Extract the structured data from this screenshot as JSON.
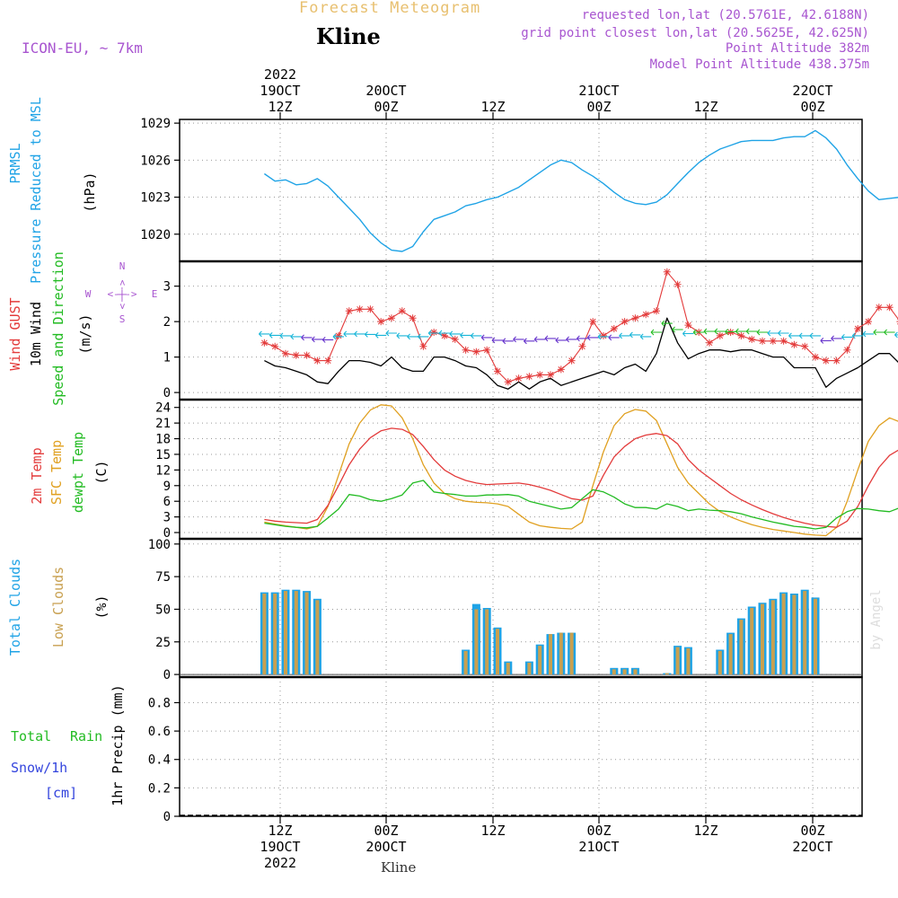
{
  "header": {
    "forecast_title": "Forecast Meteogram",
    "location": "Kline",
    "model": "ICON-EU, ~ 7km",
    "requested": "requested lon,lat (20.5761E, 42.6188N)",
    "closest": "grid point closest lon,lat (20.5625E, 42.625N)",
    "point_alt": "Point Altitude 382m",
    "model_alt": "Model Point Altitude 438.375m",
    "watermark": "by Angel",
    "footer": "Kline"
  },
  "colors": {
    "pressure": "#1fa3e6",
    "gust": "#e33b3b",
    "wind10m": "#000000",
    "wind_dir": "#22bb22",
    "temp2m": "#e33b3b",
    "sfc_temp": "#e0a020",
    "dewpt": "#22bb22",
    "total_clouds": "#1fa3e6",
    "low_clouds": "#c8a050",
    "rain": "#22bb22",
    "snow": "#3344dd",
    "header_purple": "#a855d0",
    "header_orange": "#e8c070"
  },
  "time_axis": {
    "top_ticks": [
      {
        "lines": [
          "2022",
          "19OCT",
          "12Z"
        ]
      },
      {
        "lines": [
          "20OCT",
          "00Z"
        ]
      },
      {
        "lines": [
          "12Z"
        ]
      },
      {
        "lines": [
          "21OCT",
          "00Z"
        ]
      },
      {
        "lines": [
          "12Z"
        ]
      },
      {
        "lines": [
          "22OCT",
          "00Z"
        ]
      }
    ],
    "bottom_ticks": [
      {
        "lines": [
          "12Z",
          "19OCT",
          "2022"
        ]
      },
      {
        "lines": [
          "00Z",
          "20OCT"
        ]
      },
      {
        "lines": [
          "12Z"
        ]
      },
      {
        "lines": [
          "00Z",
          "21OCT"
        ]
      },
      {
        "lines": [
          "12Z"
        ]
      },
      {
        "lines": [
          "00Z",
          "22OCT"
        ]
      }
    ]
  },
  "chart_data": [
    {
      "type": "line",
      "panel": "pressure",
      "ylabel": [
        "PRMSL",
        "Pressure Reduced to MSL",
        "(hPa)"
      ],
      "ylim": [
        1017.8,
        1029.3
      ],
      "yticks": [
        1020,
        1023,
        1026,
        1029
      ],
      "x_hours": [
        0,
        1,
        2,
        3,
        4,
        5,
        6,
        7,
        8,
        9,
        10,
        11,
        12,
        13,
        14,
        15,
        16,
        17,
        18,
        19,
        20,
        21,
        22,
        23,
        24,
        25,
        26,
        27,
        28,
        29,
        30,
        31,
        32,
        33,
        34,
        35,
        36,
        37,
        38,
        39,
        40,
        41,
        42,
        43,
        44,
        45,
        46,
        47,
        48,
        49,
        50,
        51,
        52,
        53,
        54,
        55,
        56,
        57,
        58,
        59,
        60,
        61,
        62,
        63,
        64,
        65,
        66,
        67,
        68,
        69,
        70,
        71,
        72,
        73,
        74,
        75,
        76
      ],
      "series": [
        {
          "values": [
            1024.9,
            1024.3,
            1024.4,
            1024.0,
            1024.1,
            1024.5,
            1023.9,
            1023.0,
            1022.1,
            1021.2,
            1020.1,
            1019.3,
            1018.7,
            1018.6,
            1019.0,
            1020.2,
            1021.2,
            1021.5,
            1021.8,
            1022.3,
            1022.5,
            1022.8,
            1023.0,
            1023.4,
            1023.8,
            1024.4,
            1025.0,
            1025.6,
            1026.0,
            1025.8,
            1025.2,
            1024.7,
            1024.1,
            1023.4,
            1022.8,
            1022.5,
            1022.4,
            1022.6,
            1023.2,
            1024.1,
            1025.0,
            1025.8,
            1026.4,
            1026.9,
            1027.2,
            1027.5,
            1027.6,
            1027.6,
            1027.6,
            1027.8,
            1027.9,
            1027.9,
            1028.4,
            1027.8,
            1026.9,
            1025.6,
            1024.5,
            1023.5,
            1022.8,
            1022.9,
            1023.0,
            1023.2,
            1023.9,
            1024.6,
            1025.3,
            1025.7,
            1025.9,
            1026.0,
            1026.0,
            1025.9,
            1026.0,
            1025.9,
            1026.0,
            1025.9,
            1025.9,
            1026.0,
            1026.0
          ]
        }
      ]
    },
    {
      "type": "line",
      "panel": "wind",
      "ylabel": [
        "Wind GUST",
        "10m Wind",
        "Speed and Direction",
        "(m/s)"
      ],
      "compass": {
        "n": "N",
        "s": "S",
        "w": "W",
        "e": "E",
        "arrow": "<-|->"
      },
      "ylim": [
        -0.2,
        3.7
      ],
      "yticks": [
        0,
        1,
        2,
        3
      ],
      "x_hours": [
        0,
        1,
        2,
        3,
        4,
        5,
        6,
        7,
        8,
        9,
        10,
        11,
        12,
        13,
        14,
        15,
        16,
        17,
        18,
        19,
        20,
        21,
        22,
        23,
        24,
        25,
        26,
        27,
        28,
        29,
        30,
        31,
        32,
        33,
        34,
        35,
        36,
        37,
        38,
        39,
        40,
        41,
        42,
        43,
        44,
        45,
        46,
        47,
        48,
        49,
        50,
        51,
        52,
        53,
        54,
        55,
        56,
        57,
        58,
        59,
        60,
        61,
        62,
        63,
        64,
        65,
        66,
        67,
        68,
        69,
        70,
        71,
        72,
        73,
        74,
        75,
        76
      ],
      "series": [
        {
          "name": "Wind GUST",
          "values": [
            1.4,
            1.3,
            1.1,
            1.05,
            1.05,
            0.9,
            0.9,
            1.6,
            2.3,
            2.35,
            2.35,
            2.0,
            2.1,
            2.3,
            2.1,
            1.3,
            1.7,
            1.6,
            1.5,
            1.2,
            1.15,
            1.2,
            0.6,
            0.3,
            0.4,
            0.45,
            0.5,
            0.5,
            0.65,
            0.9,
            1.3,
            2.0,
            1.6,
            1.8,
            2.0,
            2.1,
            2.2,
            2.3,
            3.4,
            3.05,
            1.9,
            1.7,
            1.4,
            1.6,
            1.7,
            1.6,
            1.5,
            1.45,
            1.45,
            1.45,
            1.35,
            1.3,
            1.0,
            0.9,
            0.9,
            1.2,
            1.8,
            2.0,
            2.4,
            2.4,
            2.0,
            1.5,
            1.0,
            1.2,
            1.6,
            2.1,
            2.1,
            1.85,
            1.75,
            1.6,
            1.4,
            1.3,
            1.25,
            1.15,
            1.05,
            1.0,
            0.9
          ]
        },
        {
          "name": "10m Wind",
          "values": [
            0.9,
            0.75,
            0.7,
            0.6,
            0.5,
            0.3,
            0.25,
            0.6,
            0.9,
            0.9,
            0.85,
            0.75,
            1.0,
            0.7,
            0.6,
            0.6,
            1.0,
            1.0,
            0.9,
            0.75,
            0.7,
            0.5,
            0.2,
            0.1,
            0.3,
            0.1,
            0.3,
            0.4,
            0.2,
            0.3,
            0.4,
            0.5,
            0.6,
            0.5,
            0.7,
            0.8,
            0.6,
            1.1,
            2.1,
            1.4,
            0.95,
            1.1,
            1.2,
            1.2,
            1.15,
            1.2,
            1.2,
            1.1,
            1.0,
            1.0,
            0.7,
            0.7,
            0.7,
            0.15,
            0.4,
            0.55,
            0.7,
            0.9,
            1.1,
            1.1,
            0.8,
            0.6,
            0.35,
            0.7,
            0.9,
            1.1,
            1.0,
            1.2,
            1.1,
            0.9,
            0.95,
            0.95,
            0.95,
            0.8,
            0.75,
            0.65,
            0.7
          ]
        }
      ]
    },
    {
      "type": "line",
      "panel": "temperature",
      "ylabel": [
        "2m Temp",
        "SFC Temp",
        "dewpt Temp",
        "(C)"
      ],
      "ylim": [
        -1.2,
        25.5
      ],
      "yticks": [
        0,
        3,
        6,
        9,
        12,
        15,
        18,
        21,
        24
      ],
      "x_hours": [
        0,
        1,
        2,
        3,
        4,
        5,
        6,
        7,
        8,
        9,
        10,
        11,
        12,
        13,
        14,
        15,
        16,
        17,
        18,
        19,
        20,
        21,
        22,
        23,
        24,
        25,
        26,
        27,
        28,
        29,
        30,
        31,
        32,
        33,
        34,
        35,
        36,
        37,
        38,
        39,
        40,
        41,
        42,
        43,
        44,
        45,
        46,
        47,
        48,
        49,
        50,
        51,
        52,
        53,
        54,
        55,
        56,
        57,
        58,
        59,
        60,
        61,
        62,
        63,
        64,
        65,
        66,
        67,
        68,
        69,
        70,
        71,
        72,
        73,
        74,
        75,
        76
      ],
      "series": [
        {
          "name": "2m Temp",
          "values": [
            2.5,
            2.2,
            2.0,
            1.9,
            1.8,
            2.5,
            5.2,
            9.0,
            13.0,
            16.0,
            18.2,
            19.5,
            20.0,
            19.8,
            18.8,
            16.5,
            14.0,
            12.0,
            10.8,
            10.0,
            9.5,
            9.2,
            9.3,
            9.4,
            9.5,
            9.2,
            8.7,
            8.1,
            7.3,
            6.5,
            6.2,
            7.0,
            11.0,
            14.5,
            16.5,
            18.0,
            18.7,
            19.0,
            18.6,
            17.0,
            14.0,
            12.0,
            10.5,
            9.0,
            7.5,
            6.3,
            5.3,
            4.4,
            3.6,
            2.9,
            2.3,
            1.8,
            1.4,
            1.2,
            1.0,
            2.2,
            5.0,
            9.0,
            12.5,
            14.8,
            16.0,
            16.5,
            16.3,
            15.5,
            14.0,
            12.0,
            10.0,
            8.0,
            6.5,
            5.3,
            4.5,
            3.8,
            3.3,
            3.0,
            2.8,
            2.6,
            2.5
          ]
        },
        {
          "name": "SFC Temp",
          "values": [
            2.0,
            1.6,
            1.3,
            1.0,
            0.7,
            1.2,
            5.0,
            11.0,
            17.0,
            21.0,
            23.5,
            24.5,
            24.3,
            22.0,
            18.0,
            13.0,
            9.5,
            7.5,
            6.5,
            6.0,
            5.8,
            5.7,
            5.5,
            5.0,
            3.5,
            2.0,
            1.3,
            1.0,
            0.8,
            0.7,
            2.0,
            9.0,
            15.5,
            20.5,
            22.8,
            23.6,
            23.3,
            21.5,
            17.0,
            12.5,
            9.5,
            7.5,
            5.5,
            4.0,
            3.0,
            2.2,
            1.5,
            1.0,
            0.6,
            0.3,
            0.0,
            -0.3,
            -0.5,
            -0.6,
            1.0,
            6.0,
            12.0,
            17.5,
            20.5,
            22.0,
            21.2,
            18.5,
            14.0,
            10.0,
            6.5,
            4.0,
            2.5,
            1.5,
            0.9,
            0.6,
            0.4,
            0.3,
            0.2,
            0.1,
            0.1,
            0.2,
            0.3
          ]
        },
        {
          "name": "dewpt Temp",
          "values": [
            1.8,
            1.5,
            1.2,
            1.0,
            0.9,
            1.2,
            2.8,
            4.5,
            7.3,
            7.0,
            6.3,
            6.0,
            6.5,
            7.2,
            9.5,
            10.0,
            7.8,
            7.5,
            7.3,
            7.0,
            7.0,
            7.2,
            7.2,
            7.3,
            7.0,
            6.0,
            5.5,
            5.0,
            4.5,
            4.8,
            6.5,
            8.2,
            7.8,
            6.8,
            5.5,
            4.8,
            4.8,
            4.5,
            5.5,
            5.0,
            4.2,
            4.5,
            4.3,
            4.2,
            4.0,
            3.6,
            3.0,
            2.5,
            2.0,
            1.6,
            1.2,
            1.0,
            0.7,
            1.0,
            2.8,
            4.0,
            4.6,
            4.5,
            4.2,
            4.0,
            4.8,
            5.8,
            5.3,
            4.8,
            4.2,
            3.8,
            3.5,
            3.5,
            3.2,
            3.0,
            2.8,
            2.5,
            2.3,
            2.1,
            2.0,
            1.8,
            1.8
          ]
        }
      ]
    },
    {
      "type": "bar",
      "panel": "clouds",
      "ylabel": [
        "Total Clouds",
        "Low Clouds",
        "(%)"
      ],
      "ylim": [
        -2,
        104
      ],
      "yticks": [
        0,
        25,
        50,
        75,
        100
      ],
      "x_hours": [
        0,
        1,
        2,
        3,
        4,
        5,
        6,
        7,
        8,
        9,
        10,
        11,
        12,
        13,
        14,
        15,
        16,
        17,
        18,
        19,
        20,
        21,
        22,
        23,
        24,
        25,
        26,
        27,
        28,
        29,
        30,
        31,
        32,
        33,
        34,
        35,
        36,
        37,
        38,
        39,
        40,
        41,
        42,
        43,
        44,
        45,
        46,
        47,
        48,
        49,
        50,
        51,
        52,
        53,
        54,
        55,
        56,
        57,
        58,
        59,
        60,
        61,
        62,
        63,
        64,
        65,
        66,
        67,
        68,
        69,
        70,
        71,
        72,
        73,
        74,
        75,
        76
      ],
      "series": [
        {
          "name": "Total Clouds",
          "values": [
            63,
            63,
            65,
            65,
            64,
            58,
            0,
            0,
            0,
            0,
            0,
            0,
            0,
            0,
            0,
            0,
            0,
            0,
            0,
            19,
            54,
            51,
            36,
            10,
            0,
            10,
            23,
            31,
            32,
            32,
            0,
            0,
            0,
            5,
            5,
            5,
            0,
            0,
            1,
            22,
            21,
            0,
            0,
            19,
            32,
            43,
            52,
            55,
            58,
            63,
            62,
            65,
            59,
            0,
            0,
            0,
            0,
            0,
            0,
            0,
            0,
            0,
            0,
            1,
            3,
            9,
            15,
            24,
            28,
            46,
            53,
            100,
            66,
            81,
            81,
            64,
            100
          ]
        },
        {
          "name": "Low Clouds",
          "values": [
            62,
            62,
            64,
            64,
            63,
            57,
            0,
            0,
            0,
            0,
            0,
            0,
            0,
            0,
            0,
            0,
            0,
            0,
            0,
            18,
            50,
            50,
            35,
            9,
            0,
            9,
            22,
            31,
            32,
            32,
            0,
            0,
            0,
            4,
            4,
            4,
            0,
            0,
            1,
            21,
            20,
            0,
            0,
            18,
            31,
            42,
            51,
            54,
            57,
            62,
            61,
            64,
            58,
            0,
            0,
            0,
            0,
            0,
            0,
            0,
            0,
            0,
            0,
            0,
            0,
            0,
            0,
            0,
            27,
            45,
            52,
            59,
            61,
            57,
            56,
            55,
            55
          ]
        }
      ]
    },
    {
      "type": "bar",
      "panel": "precip",
      "ylabel": [
        "1hr Precip (mm)"
      ],
      "legend_labels": [
        "Total",
        "Rain",
        "Snow/1h",
        "[cm]"
      ],
      "ylim": [
        0,
        0.98
      ],
      "yticks": [
        0,
        0.2,
        0.4,
        0.6,
        0.8
      ],
      "ytick_labels": [
        "0",
        "0.2",
        "0.4",
        "0.6",
        "0.8"
      ],
      "series": [
        {
          "name": "Total",
          "values": []
        }
      ]
    }
  ]
}
